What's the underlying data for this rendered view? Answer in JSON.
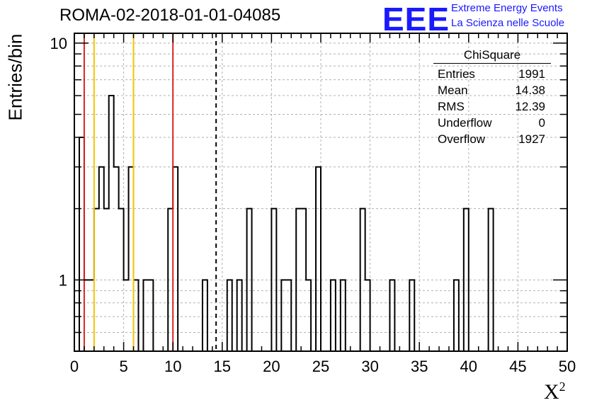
{
  "header": {
    "title": "ROMA-02-2018-01-01-04085",
    "logo_text": "EEE",
    "logo_line1": "Extreme Energy Events",
    "logo_line2": "La Scienza nelle Scuole"
  },
  "stats_box": {
    "title": "ChiSquare",
    "rows": [
      {
        "label": "Entries",
        "value": "1991"
      },
      {
        "label": "Mean",
        "value": "14.38"
      },
      {
        "label": "RMS",
        "value": "12.39"
      },
      {
        "label": "Underflow",
        "value": "0"
      },
      {
        "label": "Overflow",
        "value": "1927"
      }
    ]
  },
  "colors": {
    "red_line": "#dd2222",
    "orange_line": "#f5c400",
    "logo_blue": "#1a1aff",
    "grid": "#b0b0b0"
  },
  "chart_data": {
    "type": "bar",
    "title": "ROMA-02-2018-01-01-04085",
    "xlabel": "X²",
    "ylabel": "Entries/bin",
    "xlim": [
      0,
      50
    ],
    "ylim": [
      0.5,
      11
    ],
    "y_scale": "log",
    "grid": true,
    "bin_width": 0.5,
    "x_ticks": [
      "0",
      "5",
      "10",
      "15",
      "20",
      "25",
      "30",
      "35",
      "40",
      "45",
      "50"
    ],
    "y_ticks": [
      "1",
      "10"
    ],
    "bins": [
      {
        "x": 0.5,
        "y": 4
      },
      {
        "x": 1.0,
        "y": 1
      },
      {
        "x": 1.5,
        "y": 1
      },
      {
        "x": 2.0,
        "y": 2
      },
      {
        "x": 2.5,
        "y": 3
      },
      {
        "x": 3.0,
        "y": 2
      },
      {
        "x": 3.5,
        "y": 6
      },
      {
        "x": 4.0,
        "y": 3
      },
      {
        "x": 4.5,
        "y": 2
      },
      {
        "x": 5.0,
        "y": 1
      },
      {
        "x": 5.5,
        "y": 3
      },
      {
        "x": 6.0,
        "y": 1
      },
      {
        "x": 7.0,
        "y": 1
      },
      {
        "x": 7.5,
        "y": 1
      },
      {
        "x": 9.5,
        "y": 2
      },
      {
        "x": 10.0,
        "y": 3
      },
      {
        "x": 13.0,
        "y": 1
      },
      {
        "x": 15.5,
        "y": 1
      },
      {
        "x": 16.5,
        "y": 1
      },
      {
        "x": 17.5,
        "y": 2
      },
      {
        "x": 20.0,
        "y": 2
      },
      {
        "x": 21.0,
        "y": 1
      },
      {
        "x": 21.5,
        "y": 1
      },
      {
        "x": 22.5,
        "y": 2
      },
      {
        "x": 23.0,
        "y": 2
      },
      {
        "x": 23.5,
        "y": 1
      },
      {
        "x": 24.5,
        "y": 3
      },
      {
        "x": 26.0,
        "y": 1
      },
      {
        "x": 27.0,
        "y": 1
      },
      {
        "x": 29.0,
        "y": 2
      },
      {
        "x": 29.5,
        "y": 1
      },
      {
        "x": 32.0,
        "y": 1
      },
      {
        "x": 34.0,
        "y": 1
      },
      {
        "x": 38.5,
        "y": 1
      },
      {
        "x": 39.5,
        "y": 2
      },
      {
        "x": 42.0,
        "y": 2
      }
    ],
    "vertical_lines": [
      {
        "x": 1,
        "style": "red"
      },
      {
        "x": 10,
        "style": "red"
      },
      {
        "x": 2,
        "style": "orange"
      },
      {
        "x": 6,
        "style": "orange"
      },
      {
        "x": 14.38,
        "style": "dashed-black"
      }
    ]
  }
}
